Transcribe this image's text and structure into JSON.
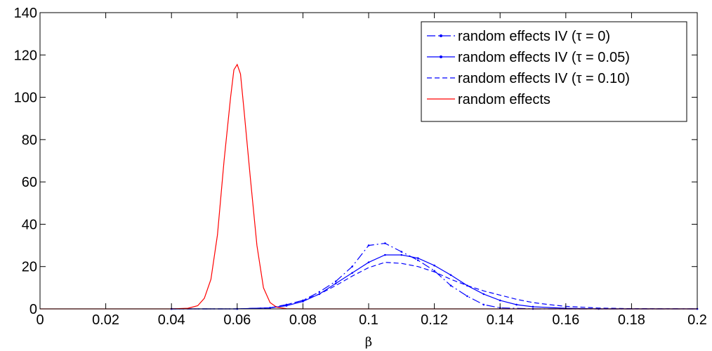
{
  "chart_data": {
    "type": "line",
    "title": "",
    "xlabel": "β",
    "ylabel": "",
    "xlim": [
      0,
      0.2
    ],
    "ylim": [
      0,
      140
    ],
    "x_ticks": [
      "0",
      "0.02",
      "0.04",
      "0.06",
      "0.08",
      "0.1",
      "0.12",
      "0.14",
      "0.16",
      "0.18",
      "0.2"
    ],
    "x_tick_values": [
      0,
      0.02,
      0.04,
      0.06,
      0.08,
      0.1,
      0.12,
      0.14,
      0.16,
      0.18,
      0.2
    ],
    "y_ticks": [
      "0",
      "20",
      "40",
      "60",
      "80",
      "100",
      "120",
      "140"
    ],
    "y_tick_values": [
      0,
      20,
      40,
      60,
      80,
      100,
      120,
      140
    ],
    "grid": false,
    "legend_position": "top-right",
    "series": [
      {
        "name": "random effects IV (τ = 0)",
        "color": "#0000ff",
        "style": "dashdot",
        "marker": "point",
        "x": [
          0.04,
          0.06,
          0.07,
          0.075,
          0.08,
          0.085,
          0.09,
          0.095,
          0.1,
          0.105,
          0.11,
          0.115,
          0.12,
          0.125,
          0.13,
          0.135,
          0.14,
          0.15,
          0.2
        ],
        "y": [
          0,
          0,
          0.5,
          2,
          4,
          8,
          13,
          20,
          30,
          31,
          27,
          23,
          18,
          11,
          6,
          2,
          0.5,
          0,
          0
        ]
      },
      {
        "name": "random effects IV (τ = 0.05)",
        "color": "#0000ff",
        "style": "solid",
        "marker": "point",
        "x": [
          0.04,
          0.06,
          0.07,
          0.075,
          0.08,
          0.085,
          0.09,
          0.095,
          0.1,
          0.105,
          0.11,
          0.115,
          0.12,
          0.125,
          0.13,
          0.135,
          0.14,
          0.145,
          0.15,
          0.16,
          0.17,
          0.2
        ],
        "y": [
          0,
          0,
          0.5,
          1.5,
          3.5,
          7,
          12,
          17,
          22,
          25.5,
          25.5,
          24,
          20.5,
          16,
          11,
          7,
          4,
          2,
          1,
          0.3,
          0,
          0
        ]
      },
      {
        "name": "random effects IV (τ = 0.10)",
        "color": "#0000ff",
        "style": "dashed",
        "marker": "none",
        "x": [
          0.04,
          0.06,
          0.07,
          0.075,
          0.08,
          0.085,
          0.09,
          0.095,
          0.1,
          0.105,
          0.11,
          0.115,
          0.12,
          0.125,
          0.13,
          0.135,
          0.14,
          0.145,
          0.15,
          0.155,
          0.16,
          0.17,
          0.18,
          0.2
        ],
        "y": [
          0,
          0,
          0.5,
          2,
          4,
          7,
          11,
          15.5,
          19.5,
          22,
          21.5,
          20,
          17.5,
          14,
          11,
          8.5,
          6.5,
          4.5,
          3,
          2,
          1.2,
          0.4,
          0.1,
          0
        ]
      },
      {
        "name": "random effects",
        "color": "#ff0000",
        "style": "solid",
        "marker": "none",
        "x": [
          0,
          0.02,
          0.04,
          0.045,
          0.048,
          0.05,
          0.052,
          0.054,
          0.056,
          0.058,
          0.059,
          0.06,
          0.061,
          0.062,
          0.064,
          0.066,
          0.068,
          0.07,
          0.072,
          0.075,
          0.08,
          0.1,
          0.2
        ],
        "y": [
          0,
          0,
          0,
          0.3,
          1.5,
          5,
          14,
          35,
          70,
          100,
          113,
          115.5,
          111,
          95,
          62,
          30,
          10,
          3,
          0.8,
          0.1,
          0,
          0,
          0
        ]
      }
    ]
  }
}
